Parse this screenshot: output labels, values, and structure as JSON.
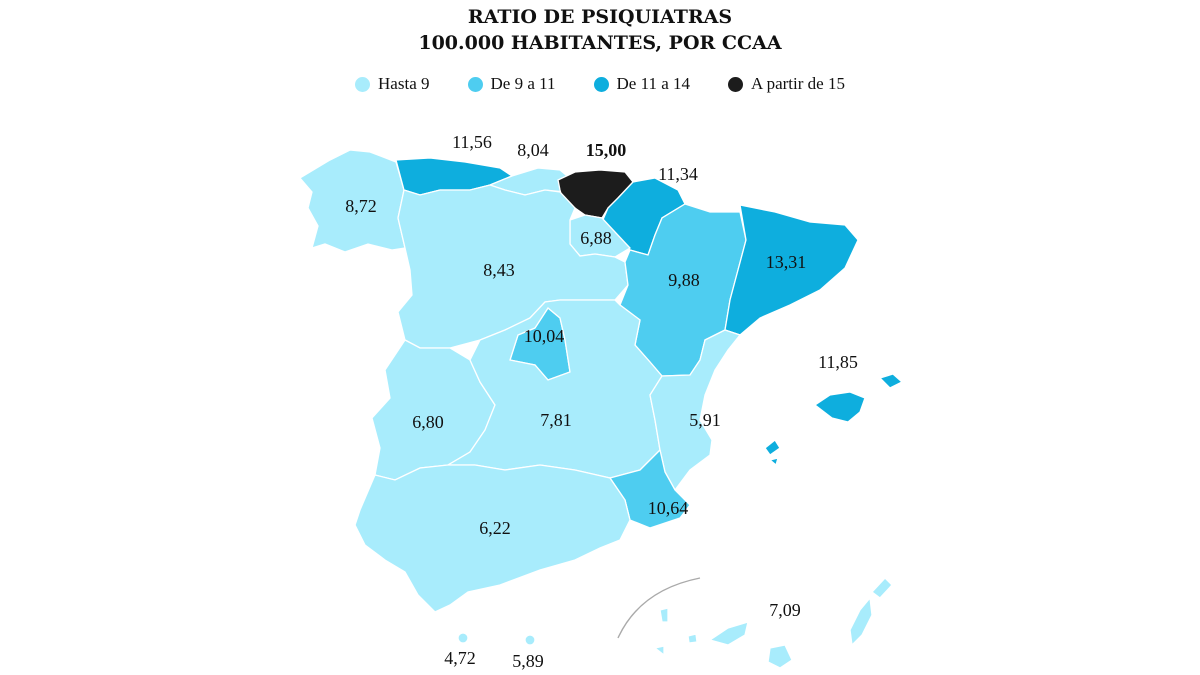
{
  "title": {
    "line1": "RATIO DE PSIQUIATRAS",
    "line2": "100.000 HABITANTES, POR CCAA"
  },
  "colors": {
    "hasta9": "#a8ecfc",
    "de9a11": "#4ecdf0",
    "de11a14": "#0eaede",
    "desde15": "#1c1c1c"
  },
  "legend": [
    {
      "label": "Hasta 9",
      "color": "#a8ecfc"
    },
    {
      "label": "De 9 a 11",
      "color": "#4ecdf0"
    },
    {
      "label": "De 11 a 14",
      "color": "#0eaede"
    },
    {
      "label": "A partir de 15",
      "color": "#1c1c1c"
    }
  ],
  "regions": {
    "galicia": "8,72",
    "asturias": "11,56",
    "cantabria": "8,04",
    "pais_vasco": "15,00",
    "navarra": "11,34",
    "la_rioja": "6,88",
    "castilla_leon": "8,43",
    "aragon": "9,88",
    "cataluna": "13,31",
    "madrid": "10,04",
    "baleares": "11,85",
    "extremadura": "6,80",
    "castilla_la_mancha": "7,81",
    "valencia": "5,91",
    "murcia": "10,64",
    "andalucia": "6,22",
    "canarias": "7,09",
    "ceuta": "4,72",
    "melilla": "5,89"
  }
}
